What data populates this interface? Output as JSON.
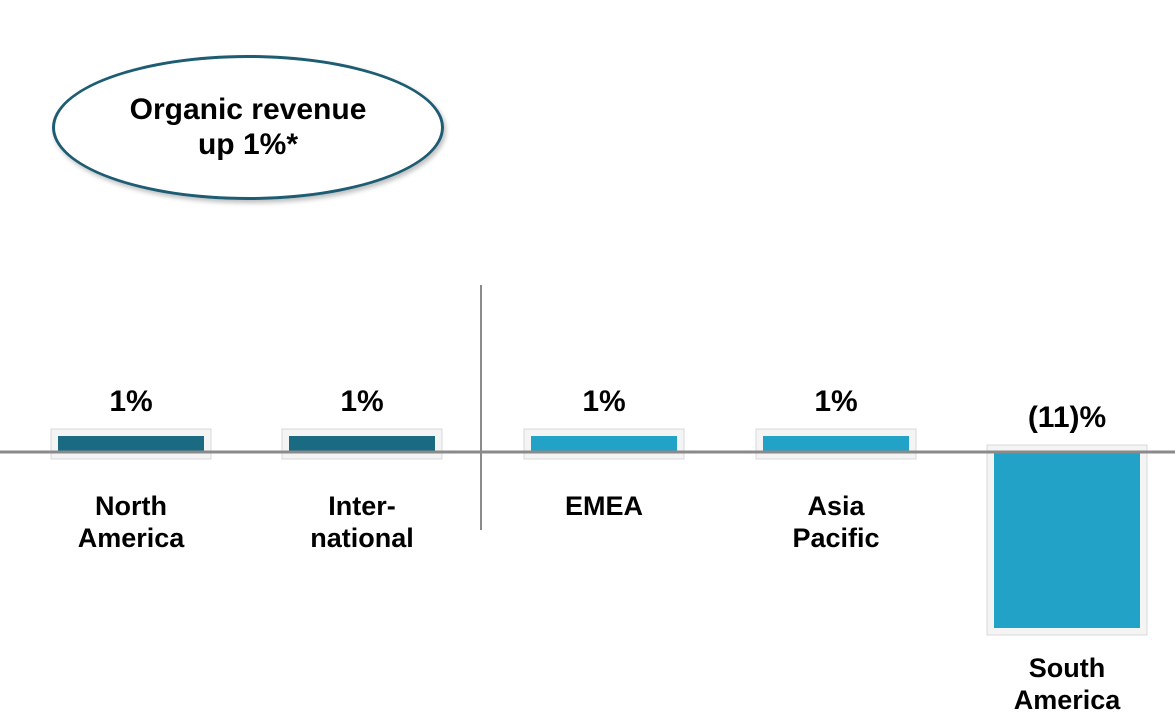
{
  "chart_data": {
    "type": "bar",
    "annotation": "Organic revenue\nup 1%*",
    "categories": [
      "North\nAmerica",
      "Inter-\nnational",
      "EMEA",
      "Asia\nPacific",
      "South\nAmerica"
    ],
    "values": [
      1,
      1,
      1,
      1,
      -11
    ],
    "value_labels": [
      "1%",
      "1%",
      "1%",
      "1%",
      "(11)%"
    ],
    "colors": [
      "#1a6a82",
      "#1a6a82",
      "#22a2c6",
      "#22a2c6",
      "#22a2c6"
    ],
    "ylim": [
      -12,
      4
    ]
  }
}
